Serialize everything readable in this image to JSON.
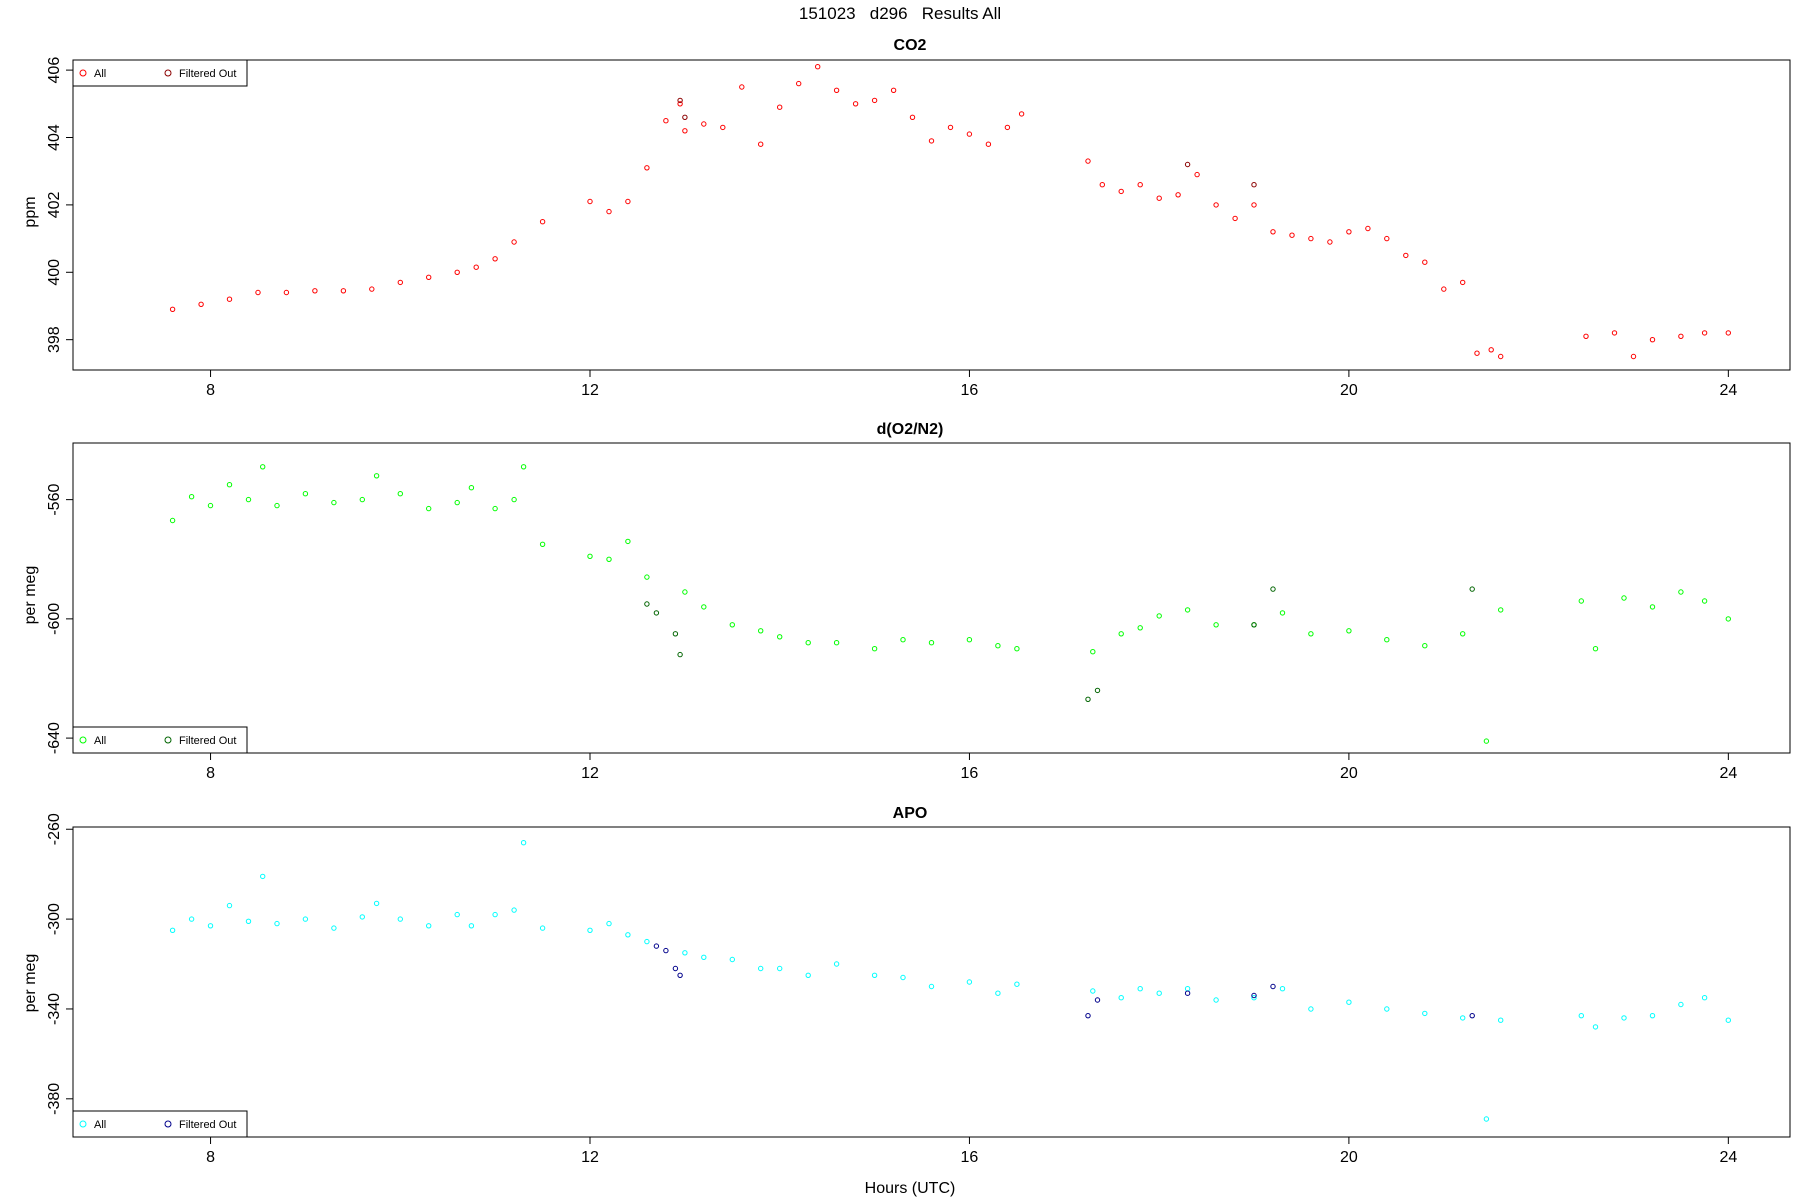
{
  "figure": {
    "title": "151023   d296   Results All",
    "xlabel": "Hours (UTC)"
  },
  "chart_data": [
    {
      "type": "scatter",
      "title": "CO2",
      "xlabel": "",
      "ylabel": "ppm",
      "xlim": [
        6.55,
        24.65
      ],
      "ylim": [
        397.1,
        406.3
      ],
      "xticks": [
        8,
        12,
        16,
        20,
        24
      ],
      "yticks": [
        398,
        400,
        402,
        404,
        406
      ],
      "legend": {
        "position": "top-left",
        "entries": [
          "All",
          "Filtered Out"
        ]
      },
      "grid": false,
      "series": [
        {
          "name": "All",
          "color": "#ff0000",
          "x": [
            7.6,
            7.9,
            8.2,
            8.5,
            8.8,
            9.1,
            9.4,
            9.7,
            10.0,
            10.3,
            10.6,
            10.8,
            11.0,
            11.2,
            11.5,
            12.0,
            12.2,
            12.4,
            12.6,
            12.8,
            12.95,
            13.0,
            13.2,
            13.4,
            13.6,
            13.8,
            14.0,
            14.2,
            14.4,
            14.6,
            14.8,
            15.0,
            15.2,
            15.4,
            15.6,
            15.8,
            16.0,
            16.2,
            16.4,
            16.55,
            17.25,
            17.4,
            17.6,
            17.8,
            18.0,
            18.2,
            18.4,
            18.6,
            18.8,
            19.0,
            19.2,
            19.4,
            19.6,
            19.8,
            20.0,
            20.2,
            20.4,
            20.6,
            20.8,
            21.0,
            21.2,
            21.35,
            21.5,
            21.6,
            22.5,
            22.8,
            23.0,
            23.2,
            23.5,
            23.75,
            24.0
          ],
          "y": [
            398.9,
            399.05,
            399.2,
            399.4,
            399.4,
            399.45,
            399.45,
            399.5,
            399.7,
            399.85,
            400.0,
            400.15,
            400.4,
            400.9,
            401.5,
            402.1,
            401.8,
            402.1,
            403.1,
            404.5,
            405.0,
            404.2,
            404.4,
            404.3,
            405.5,
            403.8,
            404.9,
            405.6,
            406.1,
            405.4,
            405.0,
            405.1,
            405.4,
            404.6,
            403.9,
            404.3,
            404.1,
            403.8,
            404.3,
            404.7,
            403.3,
            402.6,
            402.4,
            402.6,
            402.2,
            402.3,
            402.9,
            402.0,
            401.6,
            402.0,
            401.2,
            401.1,
            401.0,
            400.9,
            401.2,
            401.3,
            401.0,
            400.5,
            400.3,
            399.5,
            399.7,
            397.6,
            397.7,
            397.5,
            398.1,
            398.2,
            397.5,
            398.0,
            398.1,
            398.2,
            398.2
          ]
        },
        {
          "name": "Filtered Out",
          "color": "#8b0000",
          "x": [
            12.95,
            13.0,
            18.3,
            19.0
          ],
          "y": [
            405.1,
            404.6,
            403.2,
            402.6
          ]
        }
      ]
    },
    {
      "type": "scatter",
      "title": "d(O2/N2)",
      "xlabel": "",
      "ylabel": "per meg",
      "xlim": [
        6.55,
        24.65
      ],
      "ylim": [
        -645,
        -541
      ],
      "xticks": [
        8,
        12,
        16,
        20,
        24
      ],
      "yticks": [
        -560,
        -600,
        -640
      ],
      "legend": {
        "position": "bottom-left",
        "entries": [
          "All",
          "Filtered Out"
        ]
      },
      "grid": false,
      "series": [
        {
          "name": "All",
          "color": "#00ff00",
          "x": [
            7.6,
            7.8,
            8.0,
            8.2,
            8.4,
            8.55,
            8.7,
            9.0,
            9.3,
            9.6,
            9.75,
            10.0,
            10.3,
            10.6,
            10.75,
            11.0,
            11.2,
            11.3,
            11.5,
            12.0,
            12.2,
            12.4,
            12.6,
            13.0,
            13.2,
            13.5,
            13.8,
            14.0,
            14.3,
            14.6,
            15.0,
            15.3,
            15.6,
            16.0,
            16.3,
            16.5,
            17.3,
            17.6,
            17.8,
            18.0,
            18.3,
            18.6,
            19.0,
            19.3,
            19.6,
            20.0,
            20.4,
            20.8,
            21.2,
            21.45,
            21.6,
            22.45,
            22.6,
            22.9,
            23.2,
            23.5,
            23.75,
            24.0
          ],
          "y": [
            -567,
            -559,
            -562,
            -555,
            -560,
            -549,
            -562,
            -558,
            -561,
            -560,
            -552,
            -558,
            -563,
            -561,
            -556,
            -563,
            -560,
            -549,
            -575,
            -579,
            -580,
            -574,
            -586,
            -591,
            -596,
            -602,
            -604,
            -606,
            -608,
            -608,
            -610,
            -607,
            -608,
            -607,
            -609,
            -610,
            -611,
            -605,
            -603,
            -599,
            -597,
            -602,
            -602,
            -598,
            -605,
            -604,
            -607,
            -609,
            -605,
            -641,
            -597,
            -594,
            -610,
            -593,
            -596,
            -591,
            -594,
            -600
          ]
        },
        {
          "name": "Filtered Out",
          "color": "#006400",
          "x": [
            12.6,
            12.7,
            12.9,
            12.95,
            17.25,
            17.35,
            19.0,
            19.2,
            21.3
          ],
          "y": [
            -595,
            -598,
            -605,
            -612,
            -627,
            -624,
            -602,
            -590,
            -590
          ]
        }
      ]
    },
    {
      "type": "scatter",
      "title": "APO",
      "xlabel": "Hours (UTC)",
      "ylabel": "per meg",
      "xlim": [
        6.55,
        24.65
      ],
      "ylim": [
        -397,
        -259
      ],
      "xticks": [
        8,
        12,
        16,
        20,
        24
      ],
      "yticks": [
        -260,
        -300,
        -340,
        -380
      ],
      "legend": {
        "position": "bottom-left",
        "entries": [
          "All",
          "Filtered Out"
        ]
      },
      "grid": false,
      "series": [
        {
          "name": "All",
          "color": "#00ffff",
          "x": [
            7.6,
            7.8,
            8.0,
            8.2,
            8.4,
            8.55,
            8.7,
            9.0,
            9.3,
            9.6,
            9.75,
            10.0,
            10.3,
            10.6,
            10.75,
            11.0,
            11.2,
            11.3,
            11.5,
            12.0,
            12.2,
            12.4,
            12.6,
            13.0,
            13.2,
            13.5,
            13.8,
            14.0,
            14.3,
            14.6,
            15.0,
            15.3,
            15.6,
            16.0,
            16.3,
            16.5,
            17.3,
            17.6,
            17.8,
            18.0,
            18.3,
            18.6,
            19.0,
            19.3,
            19.6,
            20.0,
            20.4,
            20.8,
            21.2,
            21.45,
            21.6,
            22.45,
            22.6,
            22.9,
            23.2,
            23.5,
            23.75,
            24.0
          ],
          "y": [
            -305,
            -300,
            -303,
            -294,
            -301,
            -281,
            -302,
            -300,
            -304,
            -299,
            -293,
            -300,
            -303,
            -298,
            -303,
            -298,
            -296,
            -266,
            -304,
            -305,
            -302,
            -307,
            -310,
            -315,
            -317,
            -318,
            -322,
            -322,
            -325,
            -320,
            -325,
            -326,
            -330,
            -328,
            -333,
            -329,
            -332,
            -335,
            -331,
            -333,
            -331,
            -336,
            -335,
            -331,
            -340,
            -337,
            -340,
            -342,
            -344,
            -389,
            -345,
            -343,
            -348,
            -344,
            -343,
            -338,
            -335,
            -345
          ]
        },
        {
          "name": "Filtered Out",
          "color": "#00008b",
          "x": [
            12.7,
            12.8,
            12.9,
            12.95,
            17.25,
            17.35,
            18.3,
            19.0,
            19.2,
            21.3
          ],
          "y": [
            -312,
            -314,
            -322,
            -325,
            -343,
            -336,
            -333,
            -334,
            -330,
            -343
          ]
        }
      ]
    }
  ]
}
